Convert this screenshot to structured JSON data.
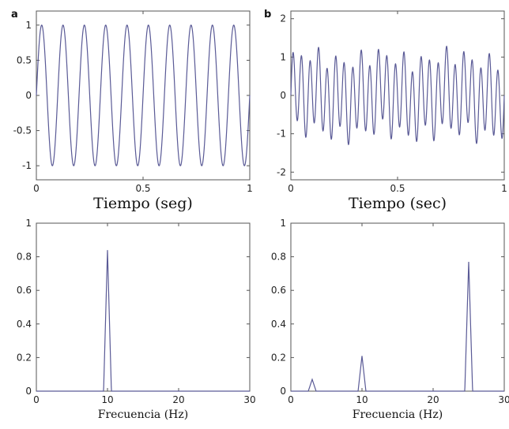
{
  "chart_data": [
    {
      "panel": "a",
      "type": "line",
      "xlabel": "Tiempo (seg)",
      "xlim": [
        0,
        1
      ],
      "ylim": [
        -1.2,
        1.2
      ],
      "xticks": [
        "0",
        "0.5",
        "1"
      ],
      "yticks": [
        "-1",
        "-0.5",
        "0",
        "0.5",
        "1"
      ],
      "series": [
        {
          "components": [
            {
              "freq_hz": 10,
              "amplitude": 1
            }
          ]
        }
      ]
    },
    {
      "panel": "b",
      "type": "line",
      "xlabel": "Tiempo (sec)",
      "xlim": [
        0,
        1
      ],
      "ylim": [
        -2.2,
        2.2
      ],
      "xticks": [
        "0",
        "0.5",
        "1"
      ],
      "yticks": [
        "-2",
        "-1",
        "0",
        "1",
        "2"
      ],
      "series": [
        {
          "components": [
            {
              "freq_hz": 3,
              "amplitude": 0.1
            },
            {
              "freq_hz": 10,
              "amplitude": 0.25
            },
            {
              "freq_hz": 25,
              "amplitude": 0.95
            }
          ]
        }
      ]
    },
    {
      "panel": "",
      "type": "line",
      "xlabel": "Frecuencia (Hz)",
      "xlim": [
        0,
        30
      ],
      "ylim": [
        0,
        1
      ],
      "xticks": [
        "0",
        "10",
        "20",
        "30"
      ],
      "yticks": [
        "0",
        "0.2",
        "0.4",
        "0.6",
        "0.8",
        "1"
      ],
      "series": [
        {
          "peaks": [
            {
              "x": 10,
              "y": 0.84
            }
          ]
        }
      ]
    },
    {
      "panel": "",
      "type": "line",
      "xlabel": "Frecuencia (Hz)",
      "xlim": [
        0,
        30
      ],
      "ylim": [
        0,
        1
      ],
      "xticks": [
        "0",
        "10",
        "20",
        "30"
      ],
      "yticks": [
        "0",
        "0.2",
        "0.4",
        "0.6",
        "0.8",
        "1"
      ],
      "series": [
        {
          "peaks": [
            {
              "x": 3,
              "y": 0.07
            },
            {
              "x": 10,
              "y": 0.21
            },
            {
              "x": 25,
              "y": 0.77
            }
          ]
        }
      ]
    }
  ]
}
